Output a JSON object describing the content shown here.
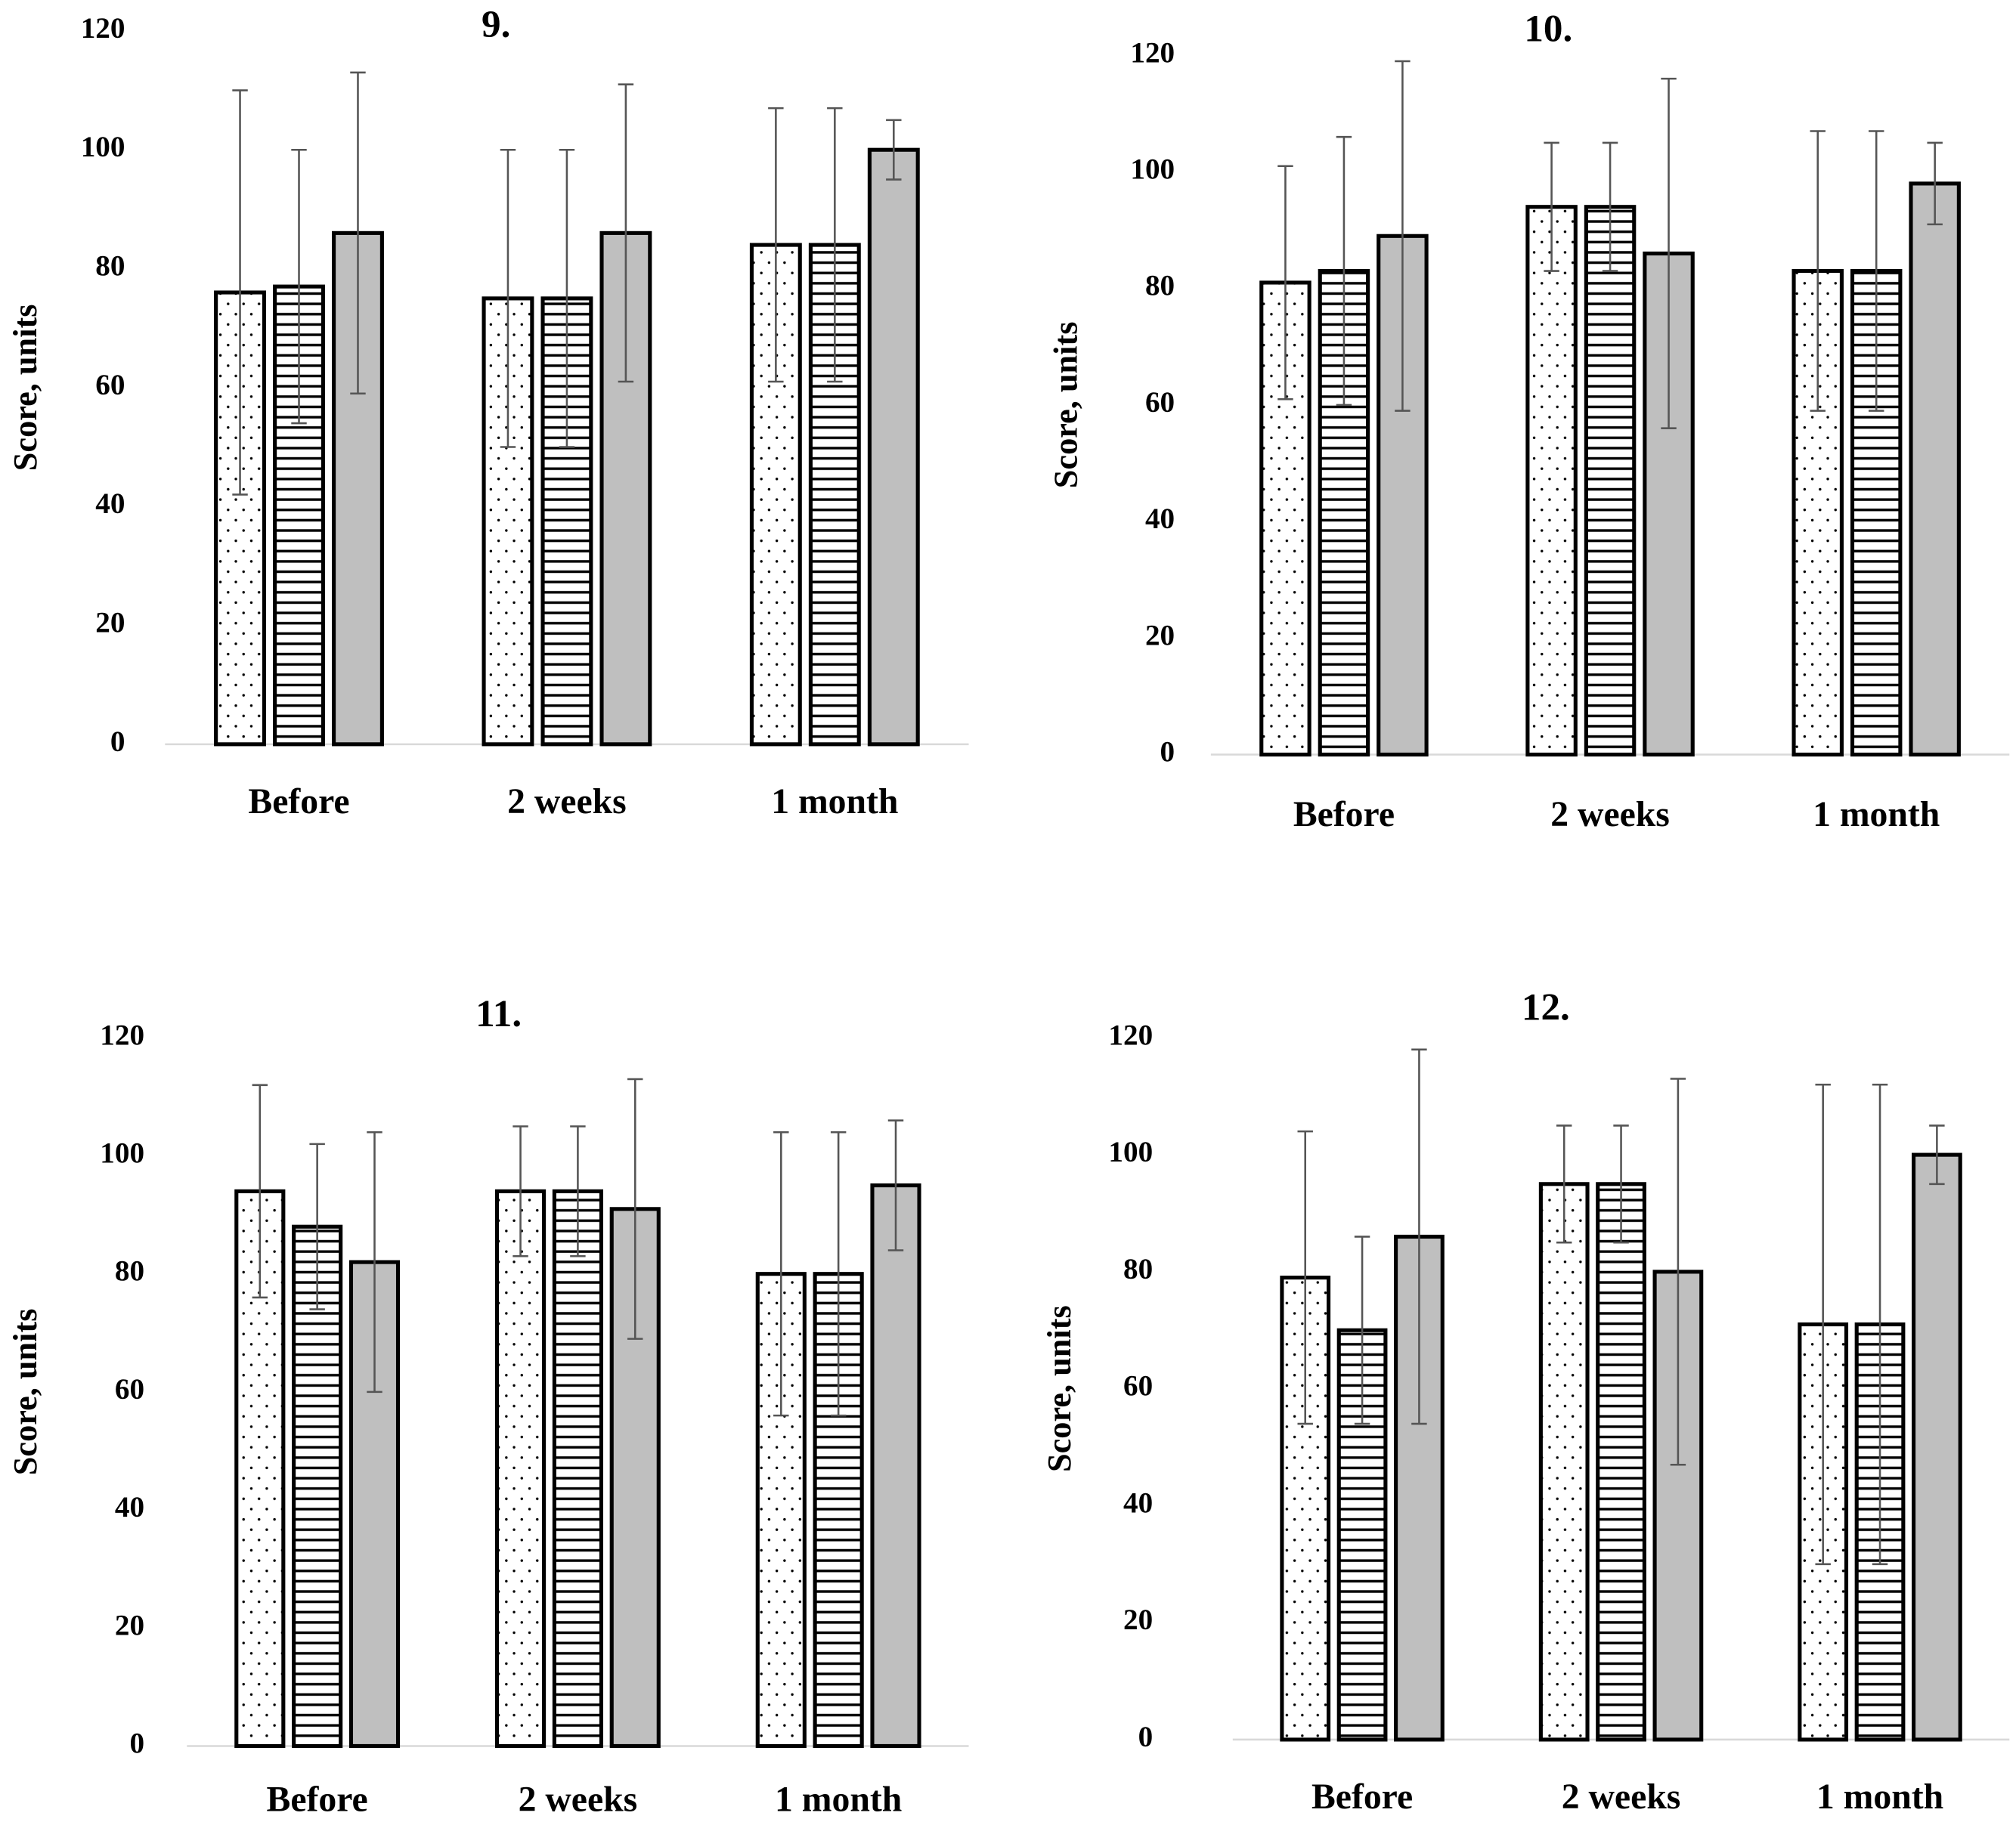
{
  "chart_data": [
    {
      "type": "bar",
      "title": "9.",
      "y_label": "Score, units",
      "categories": [
        "Before",
        "2 weeks",
        "1 month"
      ],
      "series": [
        {
          "color": "#ffffff",
          "pattern": "dots",
          "values": [
            76,
            75,
            84
          ],
          "errors": [
            34,
            25,
            23
          ]
        },
        {
          "color": "#ffffff",
          "pattern": "hlines",
          "values": [
            77,
            75,
            84
          ],
          "errors": [
            23,
            25,
            23
          ]
        },
        {
          "color": "#bfbfbf",
          "pattern": "none",
          "values": [
            86,
            86,
            100
          ],
          "errors": [
            27,
            25,
            5
          ]
        }
      ],
      "ylim": [
        0,
        120
      ],
      "yticks": [
        0,
        20,
        40,
        60,
        80,
        100,
        120
      ]
    },
    {
      "type": "bar",
      "title": "10.",
      "y_label": "Score, units",
      "categories": [
        "Before",
        "2 weeks",
        "1 month"
      ],
      "series": [
        {
          "color": "#ffffff",
          "pattern": "dots",
          "values": [
            81,
            94,
            83
          ],
          "errors": [
            20,
            11,
            24
          ]
        },
        {
          "color": "#ffffff",
          "pattern": "hlines",
          "values": [
            83,
            94,
            83
          ],
          "errors": [
            23,
            11,
            24
          ]
        },
        {
          "color": "#bfbfbf",
          "pattern": "none",
          "values": [
            89,
            86,
            98
          ],
          "errors": [
            30,
            30,
            7
          ]
        }
      ],
      "ylim": [
        0,
        120
      ],
      "yticks": [
        0,
        20,
        40,
        60,
        80,
        100,
        120
      ]
    },
    {
      "type": "bar",
      "title": "11.",
      "y_label": "Score, units",
      "categories": [
        "Before",
        "2 weeks",
        "1 month"
      ],
      "series": [
        {
          "color": "#ffffff",
          "pattern": "dots",
          "values": [
            94,
            94,
            80
          ],
          "errors": [
            18,
            11,
            24
          ]
        },
        {
          "color": "#ffffff",
          "pattern": "hlines",
          "values": [
            88,
            94,
            80
          ],
          "errors": [
            14,
            11,
            24
          ]
        },
        {
          "color": "#bfbfbf",
          "pattern": "none",
          "values": [
            82,
            91,
            95
          ],
          "errors": [
            22,
            22,
            11
          ]
        }
      ],
      "ylim": [
        0,
        120
      ],
      "yticks": [
        0,
        20,
        40,
        60,
        80,
        100,
        120
      ]
    },
    {
      "type": "bar",
      "title": "12.",
      "y_label": "Score, units",
      "categories": [
        "Before",
        "2 weeks",
        "1 month"
      ],
      "series": [
        {
          "color": "#ffffff",
          "pattern": "dots",
          "values": [
            79,
            95,
            71
          ],
          "errors": [
            25,
            10,
            41
          ]
        },
        {
          "color": "#ffffff",
          "pattern": "hlines",
          "values": [
            70,
            95,
            71
          ],
          "errors": [
            16,
            10,
            41
          ]
        },
        {
          "color": "#bfbfbf",
          "pattern": "none",
          "values": [
            86,
            80,
            100
          ],
          "errors": [
            32,
            33,
            5
          ]
        }
      ],
      "ylim": [
        0,
        120
      ],
      "yticks": [
        0,
        20,
        40,
        60,
        80,
        100,
        120
      ]
    }
  ]
}
